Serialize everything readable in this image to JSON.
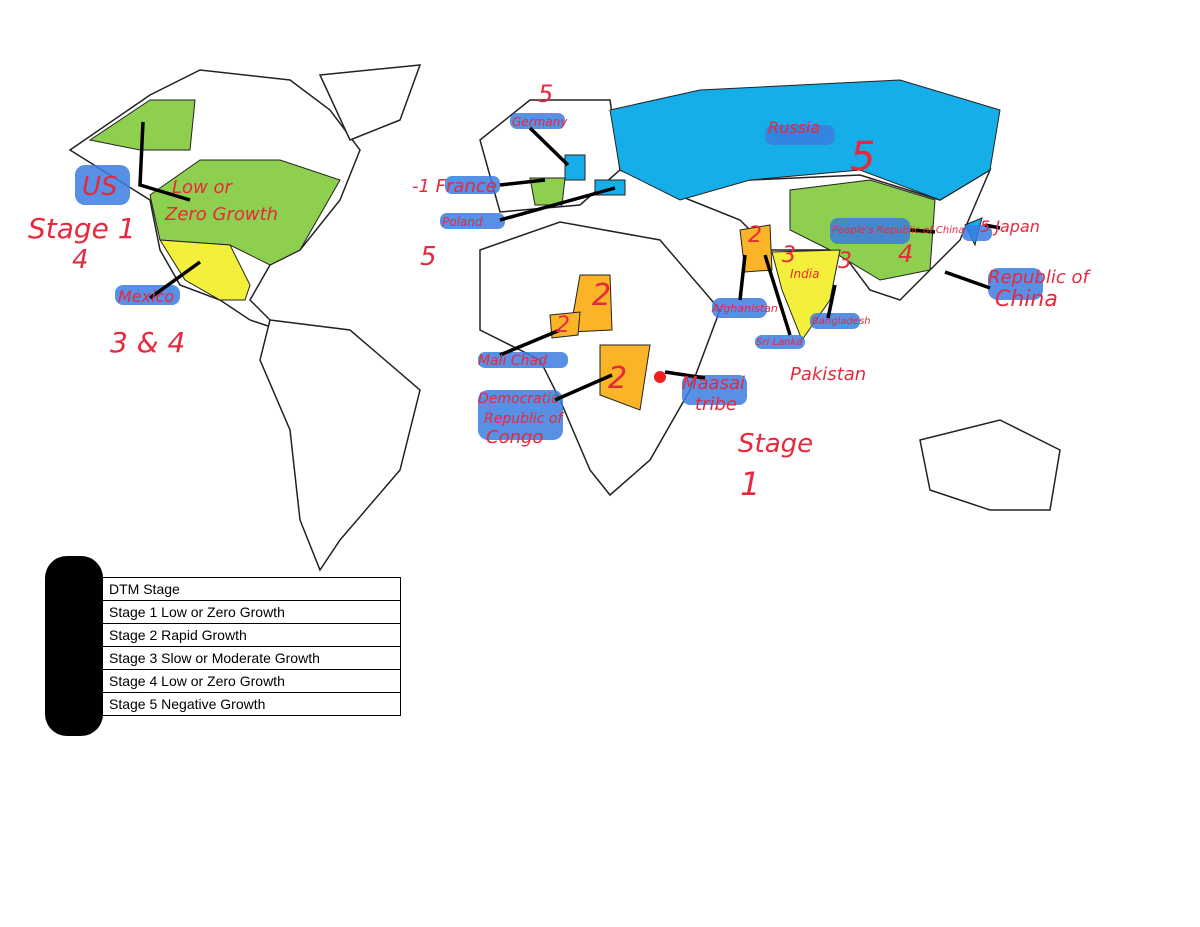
{
  "annotations": {
    "us": "US",
    "us_stage_label": "Stage 1",
    "us_stage_4": "4",
    "us_growth_1": "Low or",
    "us_growth_2": "Zero Growth",
    "mexico": "Mexico",
    "mexico_stage": "3 & 4",
    "germany_stage": "5",
    "germany": "Germany",
    "france": "-1 France",
    "poland": "Poland",
    "poland_stage": "5",
    "russia": "Russia",
    "russia_stage": "5",
    "china": "People's Republic of China",
    "china_stage": "4",
    "japan": "5 Japan",
    "republic_of_china_1": "Republic of",
    "republic_of_china_2": "China",
    "pakistan_stage": "2",
    "india_stage": "3",
    "bangladesh_stage": "3",
    "afghanistan": "Afghanistan",
    "india": "India",
    "bangladesh": "Bangladesh",
    "sri_lanka": "Sri Lanka",
    "pakistan": "Pakistan",
    "chad_stage": "2",
    "mali_stage": "2",
    "chad": "Mali Chad",
    "congo_stage": "2",
    "congo_1": "Democratic",
    "congo_2": "Republic of",
    "congo_3": "Congo",
    "maasai_1": "Maasai",
    "maasai_2": "tribe",
    "africa_stage_1": "Stage",
    "africa_stage_2": "1"
  },
  "legend": {
    "header": "DTM Stage",
    "rows": [
      "Stage 1 Low or Zero Growth",
      "Stage 2 Rapid Growth",
      "Stage 3 Slow or Moderate Growth",
      "Stage 4 Low or Zero Growth",
      "Stage 5 Negative Growth"
    ]
  }
}
